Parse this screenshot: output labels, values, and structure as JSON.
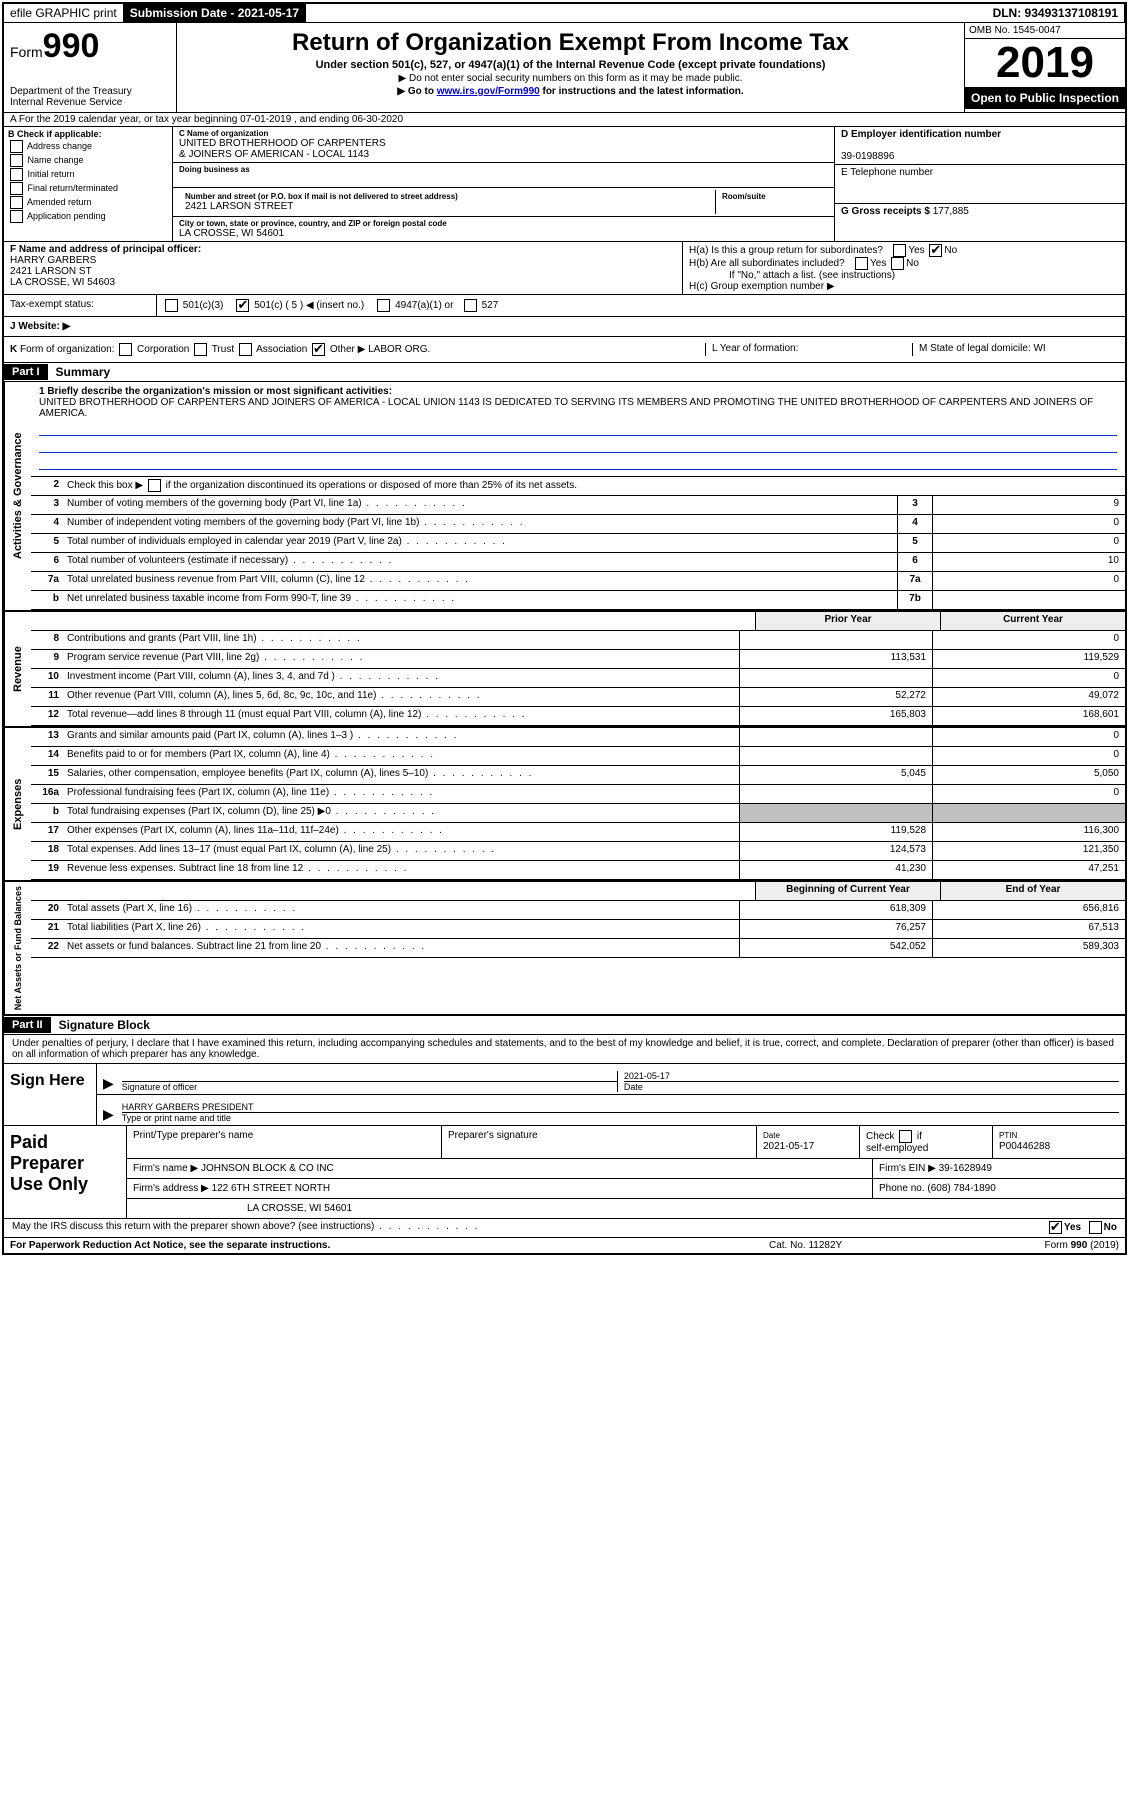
{
  "top_bar": {
    "efile": "efile GRAPHIC print",
    "submission_label": "Submission Date - 2021-05-17",
    "dln": "DLN: 93493137108191"
  },
  "header": {
    "form_prefix": "Form",
    "form_number": "990",
    "dept": "Department of the Treasury\nInternal Revenue Service",
    "title": "Return of Organization Exempt From Income Tax",
    "sub1": "Under section 501(c), 527, or 4947(a)(1) of the Internal Revenue Code (except private foundations)",
    "sub2": "▶ Do not enter social security numbers on this form as it may be made public.",
    "sub3_pre": "▶ Go to ",
    "sub3_link": "www.irs.gov/Form990",
    "sub3_post": " for instructions and the latest information.",
    "omb": "OMB No. 1545-0047",
    "year": "2019",
    "open": "Open to Public Inspection"
  },
  "row_a": "A For the 2019 calendar year, or tax year beginning 07-01-2019    , and ending 06-30-2020",
  "section_b": {
    "title": "B Check if applicable:",
    "items": [
      "Address change",
      "Name change",
      "Initial return",
      "Final return/terminated",
      "Amended return",
      "Application pending"
    ]
  },
  "section_c": {
    "name_lbl": "C Name of organization",
    "name": "UNITED BROTHERHOOD OF CARPENTERS\n& JOINERS OF AMERICAN - LOCAL 1143",
    "dba_lbl": "Doing business as",
    "dba": "",
    "addr_lbl": "Number and street (or P.O. box if mail is not delivered to street address)",
    "addr": "2421 LARSON STREET",
    "room_lbl": "Room/suite",
    "city_lbl": "City or town, state or province, country, and ZIP or foreign postal code",
    "city": "LA CROSSE, WI  54601"
  },
  "section_d": {
    "lbl": "D Employer identification number",
    "val": "39-0198896"
  },
  "section_e": {
    "lbl": "E Telephone number",
    "val": ""
  },
  "section_g": {
    "lbl": "G Gross receipts $",
    "val": "177,885"
  },
  "section_f": {
    "lbl": "F  Name and address of principal officer:",
    "name": "HARRY GARBERS",
    "addr1": "2421 LARSON ST",
    "addr2": "LA CROSSE, WI  54603"
  },
  "section_h": {
    "ha": "H(a)  Is this a group return for subordinates?",
    "hb": "H(b)  Are all subordinates included?",
    "hb_note": "If \"No,\" attach a list. (see instructions)",
    "hc": "H(c)  Group exemption number ▶"
  },
  "tax_status": {
    "lbl": "Tax-exempt status:",
    "opts": "501(c)(3)        501(c) ( 5 ) ◀ (insert no.)        4947(a)(1) or        527"
  },
  "section_j": "J   Website: ▶",
  "section_k": {
    "k": "K Form of organization:     Corporation     Trust     Association     Other ▶ LABOR ORG.",
    "l": "L Year of formation:",
    "m": "M State of legal domicile: WI"
  },
  "part1": {
    "label": "Part I",
    "title": "Summary"
  },
  "mission": {
    "lbl": "1  Briefly describe the organization's mission or most significant activities:",
    "text": "UNITED BROTHERHOOD OF CARPENTERS AND JOINERS OF AMERICA - LOCAL UNION 1143 IS DEDICATED TO SERVING ITS MEMBERS AND PROMOTING THE UNITED BROTHERHOOD OF CARPENTERS AND JOINERS OF AMERICA."
  },
  "line2": "Check this box ▶     if the organization discontinued its operations or disposed of more than 25% of its net assets.",
  "activities_rows": [
    {
      "n": "3",
      "d": "Number of voting members of the governing body (Part VI, line 1a)",
      "box": "3",
      "v": "9"
    },
    {
      "n": "4",
      "d": "Number of independent voting members of the governing body (Part VI, line 1b)",
      "box": "4",
      "v": "0"
    },
    {
      "n": "5",
      "d": "Total number of individuals employed in calendar year 2019 (Part V, line 2a)",
      "box": "5",
      "v": "0"
    },
    {
      "n": "6",
      "d": "Total number of volunteers (estimate if necessary)",
      "box": "6",
      "v": "10"
    },
    {
      "n": "7a",
      "d": "Total unrelated business revenue from Part VIII, column (C), line 12",
      "box": "7a",
      "v": "0"
    },
    {
      "n": "b",
      "d": "Net unrelated business taxable income from Form 990-T, line 39",
      "box": "7b",
      "v": ""
    }
  ],
  "col_headers": {
    "prior": "Prior Year",
    "current": "Current Year"
  },
  "revenue_rows": [
    {
      "n": "8",
      "d": "Contributions and grants (Part VIII, line 1h)",
      "p": "",
      "c": "0"
    },
    {
      "n": "9",
      "d": "Program service revenue (Part VIII, line 2g)",
      "p": "113,531",
      "c": "119,529"
    },
    {
      "n": "10",
      "d": "Investment income (Part VIII, column (A), lines 3, 4, and 7d )",
      "p": "",
      "c": "0"
    },
    {
      "n": "11",
      "d": "Other revenue (Part VIII, column (A), lines 5, 6d, 8c, 9c, 10c, and 11e)",
      "p": "52,272",
      "c": "49,072"
    },
    {
      "n": "12",
      "d": "Total revenue—add lines 8 through 11 (must equal Part VIII, column (A), line 12)",
      "p": "165,803",
      "c": "168,601"
    }
  ],
  "expense_rows": [
    {
      "n": "13",
      "d": "Grants and similar amounts paid (Part IX, column (A), lines 1–3 )",
      "p": "",
      "c": "0"
    },
    {
      "n": "14",
      "d": "Benefits paid to or for members (Part IX, column (A), line 4)",
      "p": "",
      "c": "0"
    },
    {
      "n": "15",
      "d": "Salaries, other compensation, employee benefits (Part IX, column (A), lines 5–10)",
      "p": "5,045",
      "c": "5,050"
    },
    {
      "n": "16a",
      "d": "Professional fundraising fees (Part IX, column (A), line 11e)",
      "p": "",
      "c": "0"
    },
    {
      "n": "b",
      "d": "Total fundraising expenses (Part IX, column (D), line 25) ▶0",
      "p": "GREY",
      "c": "GREY"
    },
    {
      "n": "17",
      "d": "Other expenses (Part IX, column (A), lines 11a–11d, 11f–24e)",
      "p": "119,528",
      "c": "116,300"
    },
    {
      "n": "18",
      "d": "Total expenses. Add lines 13–17 (must equal Part IX, column (A), line 25)",
      "p": "124,573",
      "c": "121,350"
    },
    {
      "n": "19",
      "d": "Revenue less expenses. Subtract line 18 from line 12",
      "p": "41,230",
      "c": "47,251"
    }
  ],
  "net_headers": {
    "prior": "Beginning of Current Year",
    "current": "End of Year"
  },
  "net_rows": [
    {
      "n": "20",
      "d": "Total assets (Part X, line 16)",
      "p": "618,309",
      "c": "656,816"
    },
    {
      "n": "21",
      "d": "Total liabilities (Part X, line 26)",
      "p": "76,257",
      "c": "67,513"
    },
    {
      "n": "22",
      "d": "Net assets or fund balances. Subtract line 21 from line 20",
      "p": "542,052",
      "c": "589,303"
    }
  ],
  "vert_labels": {
    "act": "Activities & Governance",
    "rev": "Revenue",
    "exp": "Expenses",
    "net": "Net Assets or Fund Balances"
  },
  "part2": {
    "label": "Part II",
    "title": "Signature Block"
  },
  "sig_declaration": "Under penalties of perjury, I declare that I have examined this return, including accompanying schedules and statements, and to the best of my knowledge and belief, it is true, correct, and complete. Declaration of preparer (other than officer) is based on all information of which preparer has any knowledge.",
  "sign_here": "Sign Here",
  "sig_officer_lbl": "Signature of officer",
  "sig_date_lbl": "Date",
  "sig_date": "2021-05-17",
  "sig_name_lbl": "Type or print name and title",
  "sig_name": "HARRY GARBERS  PRESIDENT",
  "paid": {
    "title": "Paid Preparer Use Only",
    "r1": {
      "c1": "Print/Type preparer's name",
      "c2": "Preparer's signature",
      "c3_lbl": "Date",
      "c3": "2021-05-17",
      "c4": "Check     if self-employed",
      "c5_lbl": "PTIN",
      "c5": "P00446288"
    },
    "r2": {
      "c1_lbl": "Firm's name     ▶",
      "c1": "JOHNSON BLOCK & CO INC",
      "c2_lbl": "Firm's EIN ▶",
      "c2": "39-1628949"
    },
    "r3": {
      "c1_lbl": "Firm's address ▶",
      "c1": "122 6TH STREET NORTH",
      "c2_lbl": "Phone no.",
      "c2": "(608) 784-1890"
    },
    "r4": "LA CROSSE, WI  54601"
  },
  "irs_discuss": "May the IRS discuss this return with the preparer shown above? (see instructions)",
  "footer": {
    "left": "For Paperwork Reduction Act Notice, see the separate instructions.",
    "mid": "Cat. No. 11282Y",
    "right": "Form 990 (2019)"
  }
}
